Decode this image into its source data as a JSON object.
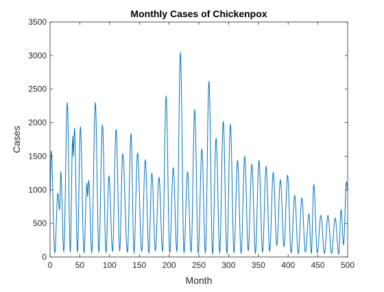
{
  "chart_data": {
    "type": "line",
    "title": "Monthly Cases of Chickenpox",
    "xlabel": "Month",
    "ylabel": "Cases",
    "xlim": [
      0,
      500
    ],
    "ylim": [
      0,
      3500
    ],
    "xticks": [
      0,
      50,
      100,
      150,
      200,
      250,
      300,
      350,
      400,
      450,
      500
    ],
    "yticks": [
      0,
      500,
      1000,
      1500,
      2000,
      2500,
      3000,
      3500
    ],
    "grid": false,
    "line_color": "#0072BD",
    "series": [
      {
        "peaks": [
          {
            "x": 2,
            "y": 1580
          },
          {
            "x": 13,
            "y": 950
          },
          {
            "x": 18,
            "y": 1270
          },
          {
            "x": 29,
            "y": 2300
          },
          {
            "x": 38,
            "y": 1800
          },
          {
            "x": 41,
            "y": 1920
          },
          {
            "x": 51,
            "y": 1940
          },
          {
            "x": 62,
            "y": 1100
          },
          {
            "x": 65,
            "y": 1140
          },
          {
            "x": 76,
            "y": 2300
          },
          {
            "x": 88,
            "y": 1970
          },
          {
            "x": 99,
            "y": 1210
          },
          {
            "x": 111,
            "y": 1900
          },
          {
            "x": 122,
            "y": 1540
          },
          {
            "x": 136,
            "y": 1840
          },
          {
            "x": 147,
            "y": 1550
          },
          {
            "x": 160,
            "y": 1450
          },
          {
            "x": 171,
            "y": 1250
          },
          {
            "x": 183,
            "y": 1190
          },
          {
            "x": 195,
            "y": 2400
          },
          {
            "x": 207,
            "y": 1330
          },
          {
            "x": 219,
            "y": 3050
          },
          {
            "x": 231,
            "y": 1270
          },
          {
            "x": 243,
            "y": 2200
          },
          {
            "x": 255,
            "y": 1610
          },
          {
            "x": 267,
            "y": 2620
          },
          {
            "x": 279,
            "y": 1770
          },
          {
            "x": 291,
            "y": 2020
          },
          {
            "x": 303,
            "y": 1980
          },
          {
            "x": 315,
            "y": 1440
          },
          {
            "x": 327,
            "y": 1500
          },
          {
            "x": 339,
            "y": 1380
          },
          {
            "x": 351,
            "y": 1440
          },
          {
            "x": 363,
            "y": 1350
          },
          {
            "x": 375,
            "y": 1260
          },
          {
            "x": 387,
            "y": 1150
          },
          {
            "x": 399,
            "y": 1220
          },
          {
            "x": 411,
            "y": 920
          },
          {
            "x": 423,
            "y": 880
          },
          {
            "x": 435,
            "y": 640
          },
          {
            "x": 443,
            "y": 1080
          },
          {
            "x": 455,
            "y": 620
          },
          {
            "x": 467,
            "y": 620
          },
          {
            "x": 479,
            "y": 580
          },
          {
            "x": 489,
            "y": 710
          },
          {
            "x": 498,
            "y": 1120
          }
        ],
        "troughs": [
          {
            "x": 0,
            "y": 920
          },
          {
            "x": 8,
            "y": 60
          },
          {
            "x": 16,
            "y": 700
          },
          {
            "x": 23,
            "y": 80
          },
          {
            "x": 34,
            "y": 70
          },
          {
            "x": 39,
            "y": 1500
          },
          {
            "x": 46,
            "y": 70
          },
          {
            "x": 57,
            "y": 60
          },
          {
            "x": 63,
            "y": 900
          },
          {
            "x": 70,
            "y": 60
          },
          {
            "x": 82,
            "y": 70
          },
          {
            "x": 94,
            "y": 60
          },
          {
            "x": 105,
            "y": 80
          },
          {
            "x": 117,
            "y": 90
          },
          {
            "x": 130,
            "y": 70
          },
          {
            "x": 141,
            "y": 60
          },
          {
            "x": 154,
            "y": 80
          },
          {
            "x": 166,
            "y": 60
          },
          {
            "x": 177,
            "y": 90
          },
          {
            "x": 189,
            "y": 80
          },
          {
            "x": 201,
            "y": 60
          },
          {
            "x": 213,
            "y": 80
          },
          {
            "x": 225,
            "y": 60
          },
          {
            "x": 237,
            "y": 70
          },
          {
            "x": 249,
            "y": 50
          },
          {
            "x": 261,
            "y": 60
          },
          {
            "x": 273,
            "y": 40
          },
          {
            "x": 285,
            "y": 60
          },
          {
            "x": 297,
            "y": 50
          },
          {
            "x": 309,
            "y": 60
          },
          {
            "x": 321,
            "y": 50
          },
          {
            "x": 333,
            "y": 90
          },
          {
            "x": 345,
            "y": 50
          },
          {
            "x": 357,
            "y": 70
          },
          {
            "x": 369,
            "y": 80
          },
          {
            "x": 381,
            "y": 170
          },
          {
            "x": 393,
            "y": 150
          },
          {
            "x": 405,
            "y": 60
          },
          {
            "x": 417,
            "y": 50
          },
          {
            "x": 429,
            "y": 70
          },
          {
            "x": 439,
            "y": 50
          },
          {
            "x": 449,
            "y": 60
          },
          {
            "x": 461,
            "y": 50
          },
          {
            "x": 473,
            "y": 50
          },
          {
            "x": 485,
            "y": 40
          },
          {
            "x": 493,
            "y": 180
          },
          {
            "x": 500,
            "y": 1000
          }
        ]
      }
    ]
  }
}
